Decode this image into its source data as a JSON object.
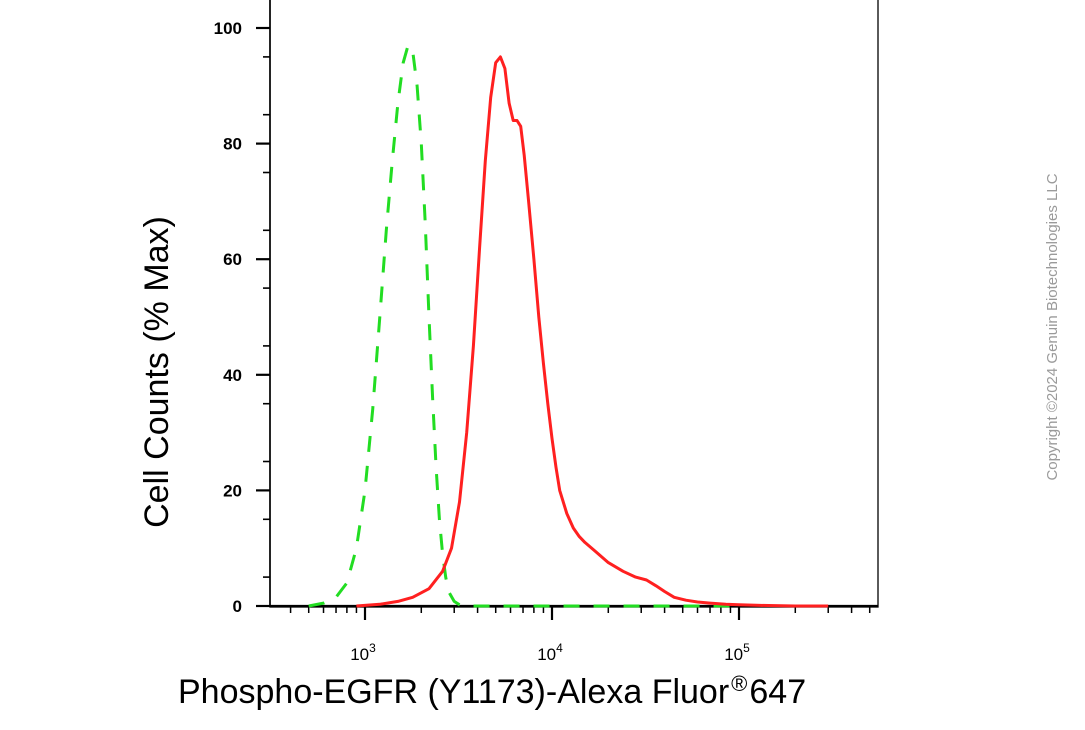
{
  "chart_data": {
    "type": "line",
    "xlabel": "Phospho-EGFR (Y1173)-Alexa Fluor",
    "xlabel_mark": "®",
    "xlabel_suffix": "647",
    "ylabel": "Cell Counts (% Max)",
    "xscale": "log",
    "xlim": [
      250,
      500000
    ],
    "ylim": [
      0,
      105
    ],
    "yticks": [
      0,
      20,
      40,
      60,
      80,
      100
    ],
    "ytick_labels": [
      "0",
      "20",
      "40",
      "60",
      "80",
      "100"
    ],
    "xticks": [
      1000,
      10000,
      100000
    ],
    "xtick_base": "10",
    "xtick_exponents": [
      "3",
      "4",
      "5"
    ],
    "grid": false,
    "legend": "none",
    "series": [
      {
        "color": "#22dd22",
        "style": "dashed",
        "x": [
          500,
          600,
          700,
          800,
          900,
          1000,
          1100,
          1200,
          1300,
          1400,
          1500,
          1600,
          1700,
          1800,
          1900,
          2000,
          2100,
          2200,
          2300,
          2400,
          2500,
          2600,
          2700,
          2800,
          3000,
          3200,
          3500,
          5000,
          10000,
          30000,
          100000
        ],
        "y": [
          0,
          0.5,
          1.5,
          4,
          10,
          20,
          34,
          50,
          65,
          77,
          87,
          94,
          97,
          96,
          90,
          80,
          66,
          50,
          36,
          24,
          15,
          9,
          5,
          2.5,
          0.8,
          0.2,
          0,
          0,
          0,
          0,
          0
        ]
      },
      {
        "color": "#ff2020",
        "style": "solid",
        "x": [
          900,
          1200,
          1500,
          1800,
          2200,
          2600,
          2900,
          3200,
          3500,
          3800,
          4100,
          4400,
          4700,
          5000,
          5300,
          5600,
          5900,
          6200,
          6500,
          6800,
          7100,
          7500,
          8000,
          8500,
          9000,
          9500,
          10000,
          10500,
          11000,
          12000,
          13000,
          14000,
          15000,
          17000,
          20000,
          24000,
          28000,
          32000,
          36000,
          40000,
          45000,
          52000,
          60000,
          70000,
          85000,
          100000,
          130000,
          200000,
          300000
        ],
        "y": [
          0,
          0.3,
          0.8,
          1.5,
          3,
          6,
          10,
          18,
          30,
          45,
          62,
          77,
          88,
          94,
          95,
          93,
          87,
          84,
          84,
          83,
          78,
          70,
          60,
          50,
          42,
          35,
          29,
          24,
          20,
          16,
          13.5,
          12,
          11,
          9.5,
          7.5,
          6,
          5,
          4.5,
          3.5,
          2.5,
          1.5,
          1,
          0.7,
          0.5,
          0.3,
          0.2,
          0.1,
          0,
          0
        ]
      }
    ]
  },
  "copyright": "Copyright ©2024 Genuin Biotechnologies LLC"
}
